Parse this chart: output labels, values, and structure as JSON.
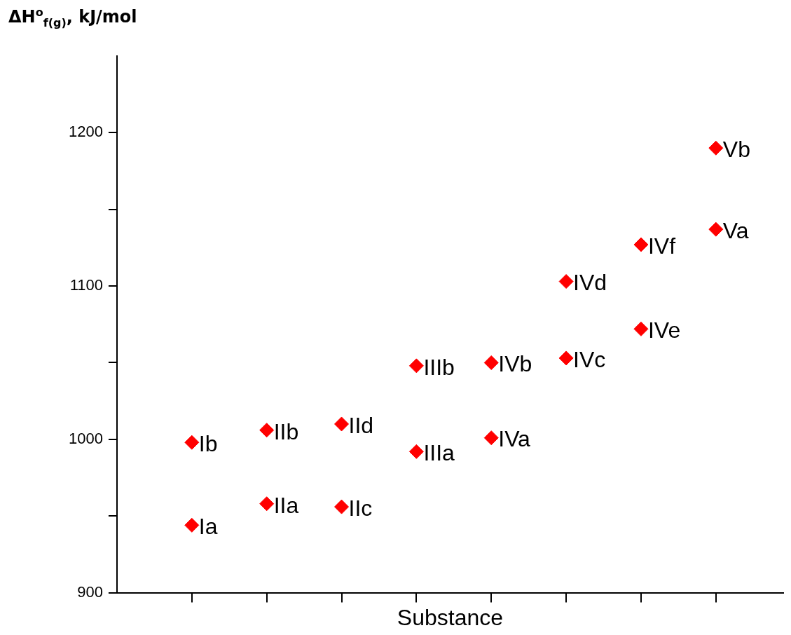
{
  "chart_data": {
    "type": "scatter",
    "ylabel": "ΔH$^{o}$$_{f(g)}$, kJ/mol",
    "xlabel": "Substance",
    "categories": [
      null,
      null,
      null,
      null,
      null,
      null,
      null,
      null
    ],
    "series": [
      {
        "color": "#ff0000",
        "values": [
          944,
          958,
          956,
          992,
          1001,
          1053,
          1072,
          1137
        ],
        "value_labels": [
          "Ia",
          "IIa",
          "IIc",
          "IIIa",
          "IVa",
          "IVc",
          "IVe",
          "Va"
        ]
      },
      {
        "color": "#ff0000",
        "values": [
          998,
          1006,
          1010,
          1048,
          1050,
          1103,
          1127,
          1190
        ],
        "value_labels": [
          "Ib",
          "IIb",
          "IId",
          "IIIb",
          "IVb",
          "IVd",
          "IVf",
          "Vb"
        ]
      }
    ],
    "ylim": [
      900,
      1250
    ],
    "yticks": [
      900,
      {
        "value": 950,
        "label": null
      },
      1000,
      {
        "value": 1050,
        "label": null
      },
      1100,
      {
        "value": 1150,
        "label": null
      },
      1200
    ],
    "tick_labels": "y",
    "grid": false,
    "legend": false,
    "marker": "diamond"
  }
}
